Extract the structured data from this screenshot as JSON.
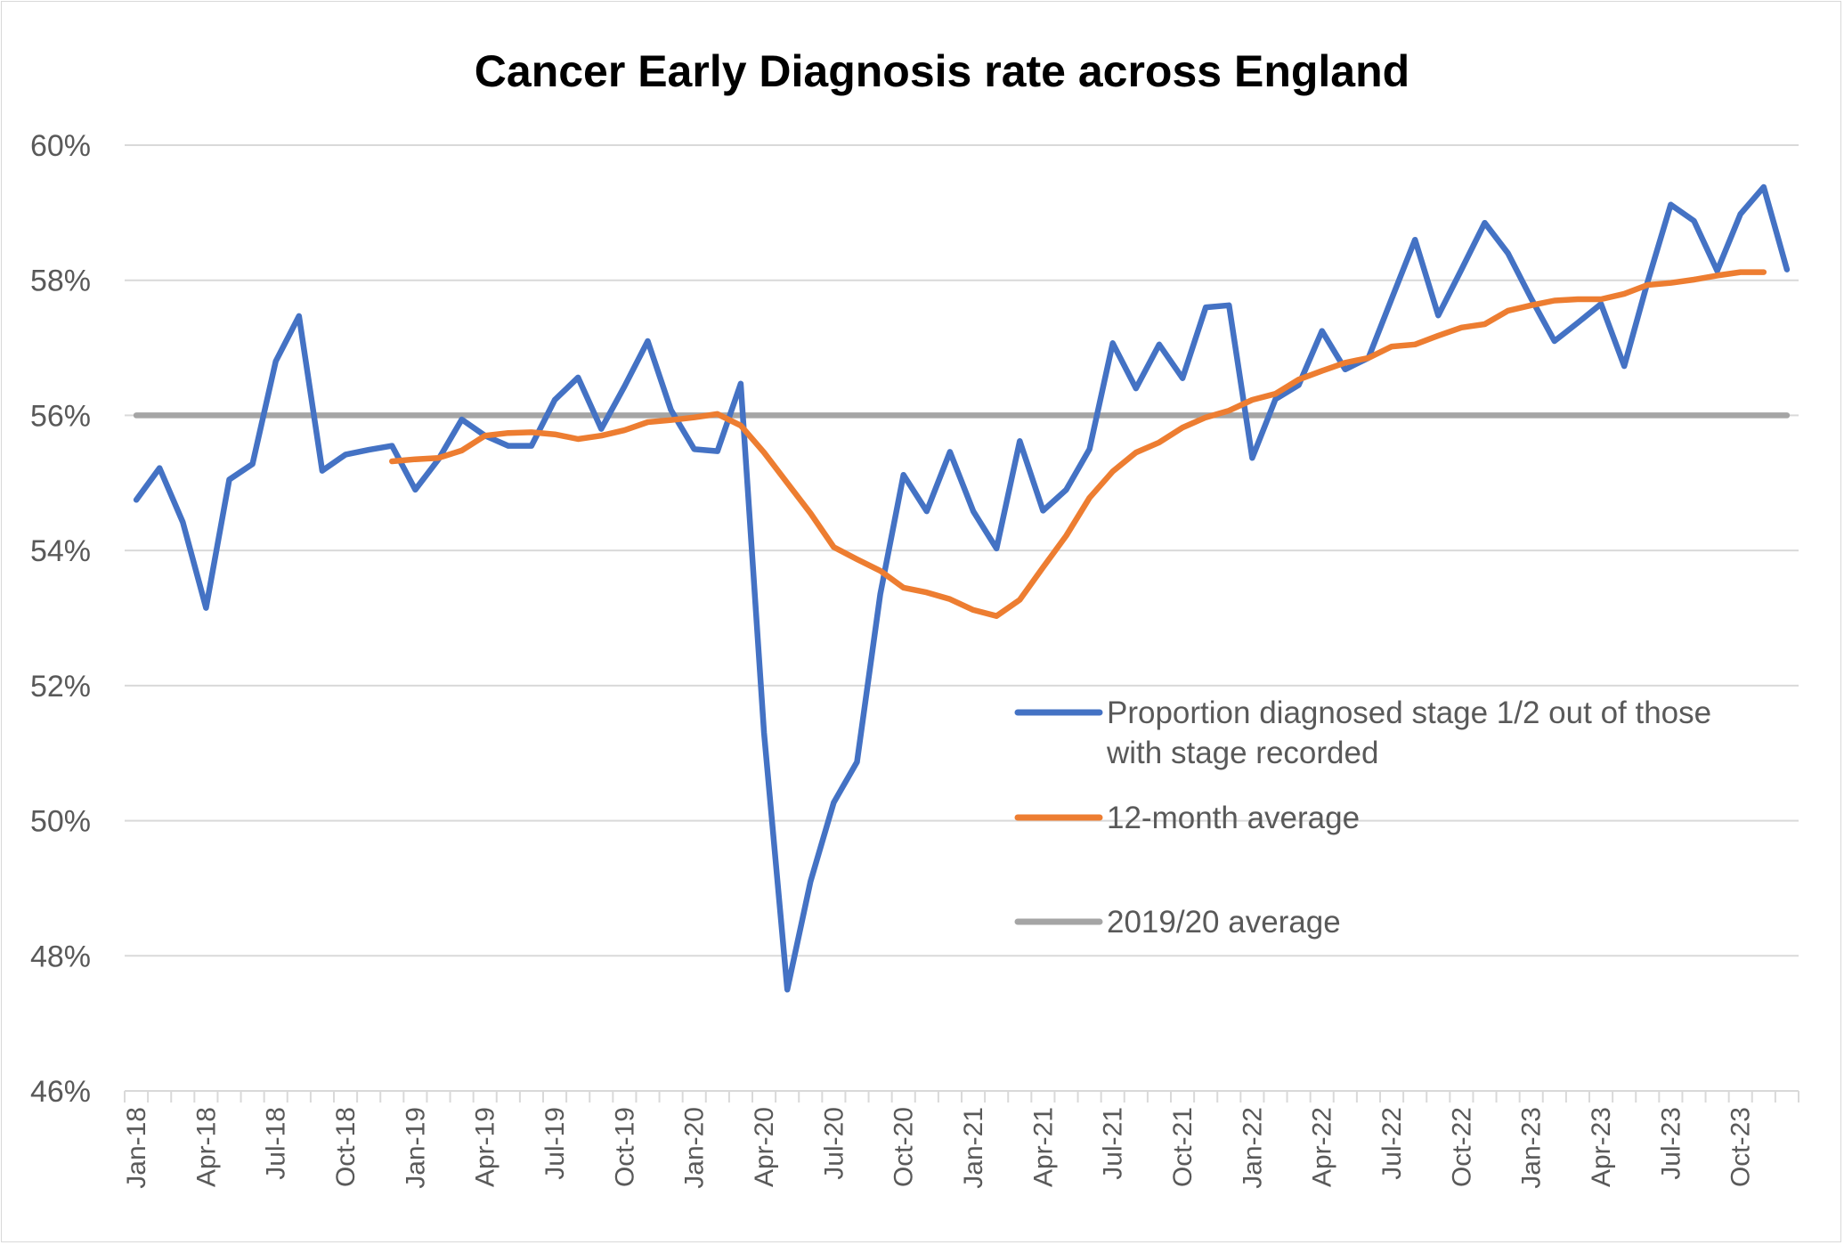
{
  "chart_data": {
    "type": "line",
    "title": "Cancer Early Diagnosis rate across England",
    "xlabel": "",
    "ylabel": "",
    "ylim": [
      46,
      60
    ],
    "y_ticks": [
      46,
      48,
      50,
      52,
      54,
      56,
      58,
      60
    ],
    "y_tick_labels": [
      "46%",
      "48%",
      "50%",
      "52%",
      "54%",
      "56%",
      "58%",
      "60%"
    ],
    "grid": true,
    "legend_position": "right",
    "months": [
      "Jan-18",
      "Feb-18",
      "Mar-18",
      "Apr-18",
      "May-18",
      "Jun-18",
      "Jul-18",
      "Aug-18",
      "Sep-18",
      "Oct-18",
      "Nov-18",
      "Dec-18",
      "Jan-19",
      "Feb-19",
      "Mar-19",
      "Apr-19",
      "May-19",
      "Jun-19",
      "Jul-19",
      "Aug-19",
      "Sep-19",
      "Oct-19",
      "Nov-19",
      "Dec-19",
      "Jan-20",
      "Feb-20",
      "Mar-20",
      "Apr-20",
      "May-20",
      "Jun-20",
      "Jul-20",
      "Aug-20",
      "Sep-20",
      "Oct-20",
      "Nov-20",
      "Dec-20",
      "Jan-21",
      "Feb-21",
      "Mar-21",
      "Apr-21",
      "May-21",
      "Jun-21",
      "Jul-21",
      "Aug-21",
      "Sep-21",
      "Oct-21",
      "Nov-21",
      "Dec-21",
      "Jan-22",
      "Feb-22",
      "Mar-22",
      "Apr-22",
      "May-22",
      "Jun-22",
      "Jul-22",
      "Aug-22",
      "Sep-22",
      "Oct-22",
      "Nov-22",
      "Dec-22",
      "Jan-23",
      "Feb-23",
      "Mar-23",
      "Apr-23",
      "May-23",
      "Jun-23",
      "Jul-23",
      "Aug-23",
      "Sep-23",
      "Oct-23",
      "Nov-23",
      "Dec-23"
    ],
    "x_tick_labels": [
      "Jan-18",
      "Apr-18",
      "Jul-18",
      "Oct-18",
      "Jan-19",
      "Apr-19",
      "Jul-19",
      "Oct-19",
      "Jan-20",
      "Apr-20",
      "Jul-20",
      "Oct-20",
      "Jan-21",
      "Apr-21",
      "Jul-21",
      "Oct-21",
      "Jan-22",
      "Apr-22",
      "Jul-22",
      "Oct-22",
      "Jan-23",
      "Apr-23",
      "Jul-23",
      "Oct-23"
    ],
    "series": [
      {
        "name": "Proportion diagnosed stage 1/2 out of those with stage recorded",
        "color": "#4472c4",
        "start_index": 0,
        "values": [
          54.75,
          55.22,
          54.42,
          53.15,
          55.05,
          55.28,
          56.8,
          57.47,
          55.18,
          55.42,
          55.49,
          55.55,
          54.9,
          55.35,
          55.94,
          55.7,
          55.55,
          55.55,
          56.23,
          56.56,
          55.8,
          56.43,
          57.1,
          56.08,
          55.5,
          55.47,
          56.47,
          51.3,
          47.5,
          49.1,
          50.27,
          50.87,
          53.35,
          55.12,
          54.58,
          55.46,
          54.58,
          54.03,
          55.62,
          54.59,
          54.9,
          55.5,
          57.07,
          56.4,
          57.05,
          56.55,
          57.6,
          57.63,
          55.37,
          56.24,
          56.45,
          57.25,
          56.68,
          56.85,
          57.73,
          58.6,
          57.48,
          58.16,
          58.85,
          58.4,
          57.73,
          57.1,
          57.37,
          57.65,
          56.73,
          57.97,
          59.12,
          58.88,
          58.14,
          58.98,
          59.38,
          58.16
        ]
      },
      {
        "name": "12-month average",
        "color": "#ed7d31",
        "start_index": 11,
        "values": [
          55.32,
          55.35,
          55.37,
          55.48,
          55.7,
          55.74,
          55.75,
          55.72,
          55.65,
          55.7,
          55.78,
          55.9,
          55.93,
          55.97,
          56.02,
          55.85,
          55.45,
          55.0,
          54.55,
          54.05,
          53.87,
          53.7,
          53.45,
          53.38,
          53.28,
          53.12,
          53.03,
          53.27,
          53.75,
          54.22,
          54.78,
          55.17,
          55.45,
          55.6,
          55.82,
          55.97,
          56.07,
          56.23,
          56.32,
          56.53,
          56.66,
          56.78,
          56.85,
          57.02,
          57.05,
          57.18,
          57.3,
          57.35,
          57.55,
          57.63,
          57.7,
          57.72,
          57.72,
          57.8,
          57.93,
          57.96,
          58.01,
          58.07,
          58.12,
          58.12
        ]
      },
      {
        "name": "2019/20 average",
        "color": "#a5a5a5",
        "constant": 56.0
      }
    ]
  }
}
